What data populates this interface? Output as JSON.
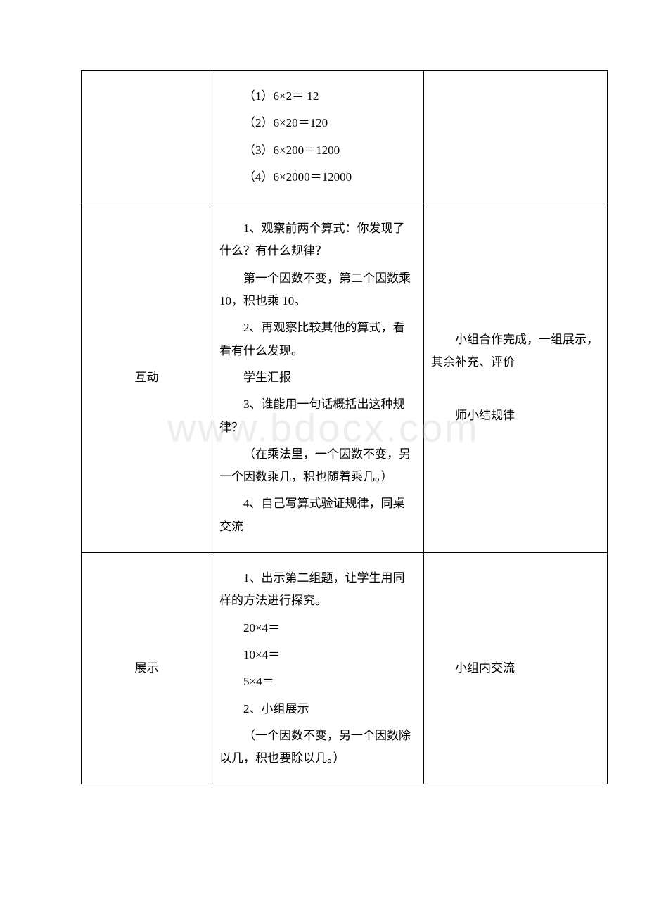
{
  "watermark": "www.bdocx.com",
  "rows": [
    {
      "col1": "",
      "col2_paras": [
        "（1）6×2＝ 12",
        "（2）6×20＝120",
        "（3）6×200＝1200",
        "（4）6×2000＝12000"
      ],
      "col3_paras": []
    },
    {
      "col1": "互动",
      "col2_paras": [
        "1、观察前两个算式：你发现了什么？有什么规律？",
        "第一个因数不变，第二个因数乘 10，积也乘 10。",
        "2、再观察比较其他的算式，看看有什么发现。",
        "学生汇报",
        "3、谁能用一句话概括出这种规律？",
        "（在乘法里，一个因数不变，另一个因数乘几，积也随着乘几。）",
        "4、自己写算式验证规律，同桌交流"
      ],
      "col3_paras": [
        "小组合作完成，一组展示，其余补充、评价",
        "",
        "师小结规律"
      ]
    },
    {
      "col1": "展示",
      "col2_paras": [
        "1、出示第二组题，让学生用同样的方法进行探究。",
        "20×4＝",
        "10×4＝",
        "5×4＝",
        "2、小组展示",
        "（一个因数不变，另一个因数除以几，积也要除以几。）"
      ],
      "col3_paras": [
        "小组内交流"
      ]
    }
  ]
}
